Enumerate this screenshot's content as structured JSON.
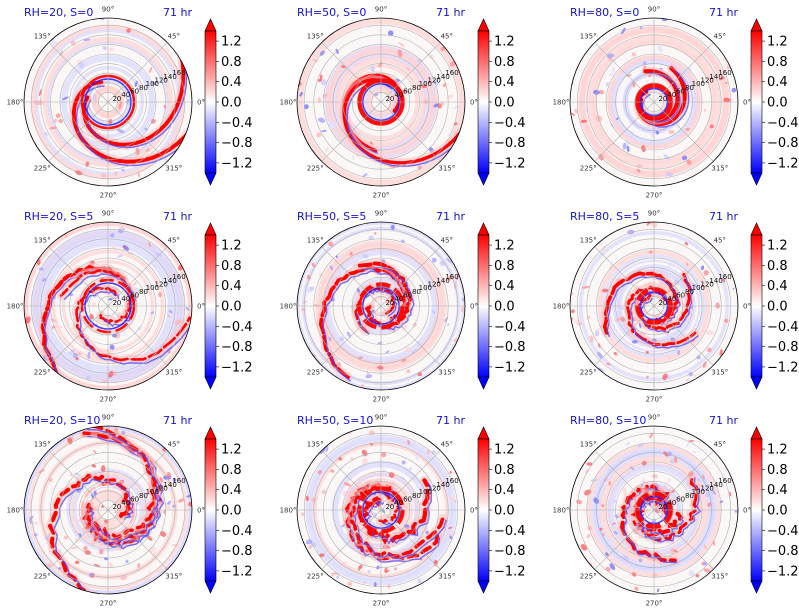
{
  "chart_data": {
    "type": "heatmap",
    "subtype": "polar-contourf-grid",
    "rows": 3,
    "cols": 3,
    "time_label": "71 hr",
    "panels": [
      {
        "title": "RH=20, S=0",
        "rh": 20,
        "s": 0
      },
      {
        "title": "RH=50, S=0",
        "rh": 50,
        "s": 0
      },
      {
        "title": "RH=80, S=0",
        "rh": 80,
        "s": 0
      },
      {
        "title": "RH=20, S=5",
        "rh": 20,
        "s": 5
      },
      {
        "title": "RH=50, S=5",
        "rh": 50,
        "s": 5
      },
      {
        "title": "RH=80, S=5",
        "rh": 80,
        "s": 5
      },
      {
        "title": "RH=20, S=10",
        "rh": 20,
        "s": 10
      },
      {
        "title": "RH=50, S=10",
        "rh": 50,
        "s": 10
      },
      {
        "title": "RH=80, S=10",
        "rh": 80,
        "s": 10
      }
    ],
    "angle_ticks": [
      "0°",
      "45°",
      "90°",
      "135°",
      "180°",
      "225°",
      "270°",
      "315°"
    ],
    "angle_values": [
      0,
      45,
      90,
      135,
      180,
      225,
      270,
      315
    ],
    "radial_ticks": [
      "20",
      "40",
      "60",
      "80",
      "100",
      "120",
      "140",
      "160"
    ],
    "radial_values": [
      20,
      40,
      60,
      80,
      100,
      120,
      140,
      160
    ],
    "radial_label_angle_deg": 22.5,
    "rmax": 175,
    "colorbar": {
      "colormap": "bwr",
      "extend": "both",
      "vmin": -1.4,
      "vmax": 1.4,
      "tick_labels": [
        "1.2",
        "0.8",
        "0.4",
        "0.0",
        "−0.4",
        "−0.8",
        "−1.2"
      ],
      "tick_values": [
        1.2,
        0.8,
        0.4,
        0.0,
        -0.4,
        -0.8,
        -1.2
      ]
    },
    "colors": {
      "positive": "#ff0000",
      "negative": "#0000ff",
      "neutral": "#ffffff",
      "title": "#1414c8",
      "grid": "#b0b0b0"
    }
  }
}
